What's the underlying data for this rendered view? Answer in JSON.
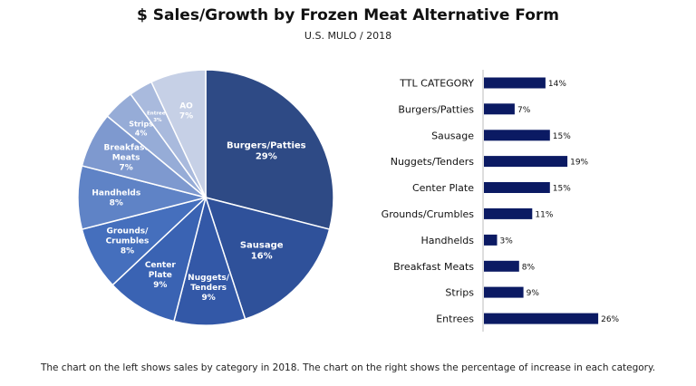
{
  "title": "$ Sales/Growth by Frozen Meat Alternative Form",
  "subtitle": "U.S. MULO / 2018",
  "caption": "The chart on the left shows sales by category in 2018. The chart on the right shows the percentage of increase in each category.",
  "chart_data": [
    {
      "type": "pie",
      "slices": [
        {
          "label": "Burgers/Patties",
          "value": 29,
          "value_label": "29%",
          "color": "#2e4a85"
        },
        {
          "label": "Sausage",
          "value": 16,
          "value_label": "16%",
          "color": "#2f519a"
        },
        {
          "label": "Nuggets/ Tenders",
          "value": 9,
          "value_label": "9%",
          "color": "#3358a7"
        },
        {
          "label": "Center Plate",
          "value": 9,
          "value_label": "9%",
          "color": "#3a63b3"
        },
        {
          "label": "Grounds/ Crumbles",
          "value": 8,
          "value_label": "8%",
          "color": "#456fbd"
        },
        {
          "label": "Handhelds",
          "value": 8,
          "value_label": "8%",
          "color": "#5f83c6"
        },
        {
          "label": "Breakfast Meats",
          "value": 7,
          "value_label": "7%",
          "color": "#7e99cf"
        },
        {
          "label": "Strips",
          "value": 4,
          "value_label": "4%",
          "color": "#96acd7"
        },
        {
          "label": "Entrees",
          "value": 3,
          "value_label": "3%",
          "color": "#a9badd"
        },
        {
          "label": "AO",
          "value": 7,
          "value_label": "7%",
          "color": "#c6d0e6"
        }
      ]
    },
    {
      "type": "bar",
      "orientation": "horizontal",
      "categories": [
        "TTL CATEGORY",
        "Burgers/Patties",
        "Sausage",
        "Nuggets/Tenders",
        "Center Plate",
        "Grounds/Crumbles",
        "Handhelds",
        "Breakfast Meats",
        "Strips",
        "Entrees"
      ],
      "values": [
        14,
        7,
        15,
        19,
        15,
        11,
        3,
        8,
        9,
        26
      ],
      "value_labels": [
        "14%",
        "7%",
        "15%",
        "19%",
        "15%",
        "11%",
        "3%",
        "8%",
        "9%",
        "26%"
      ],
      "bar_color": "#0b1a63",
      "xlim": [
        0,
        30
      ]
    }
  ]
}
